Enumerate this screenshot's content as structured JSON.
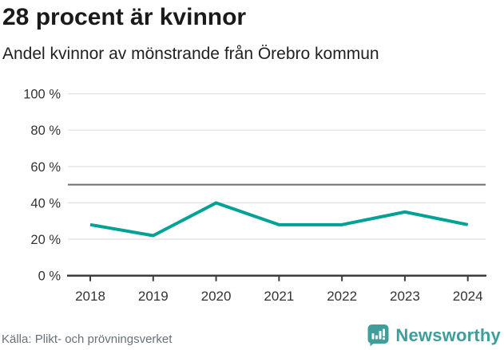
{
  "header": {
    "title": "28 procent är kvinnor",
    "subtitle": "Andel kvinnor av mönstrande från Örebro kommun"
  },
  "chart_data": {
    "type": "line",
    "title": "28 procent är kvinnor",
    "subtitle": "Andel kvinnor av mönstrande från Örebro kommun",
    "categories": [
      "2018",
      "2019",
      "2020",
      "2021",
      "2022",
      "2023",
      "2024"
    ],
    "series": [
      {
        "name": "Andel kvinnor av mönstrande",
        "values": [
          28,
          22,
          40,
          28,
          28,
          35,
          28
        ]
      }
    ],
    "unit": "%",
    "xlabel": "",
    "ylabel": "",
    "ylim": [
      0,
      100
    ],
    "yticks": [
      0,
      20,
      40,
      60,
      80,
      100
    ],
    "ytick_suffix": " %",
    "reference_line": 50,
    "grid": true,
    "legend": "none",
    "colors": {
      "line": "#00a296",
      "grid": "#e2e2e2",
      "reference": "#6d6d6d",
      "axis": "#3c3c3c",
      "tick_label": "#333333"
    }
  },
  "footer": {
    "source": "Källa: Plikt- och prövningsverket",
    "brand": "Newsworthy",
    "brand_color": "#3f9e9b"
  }
}
